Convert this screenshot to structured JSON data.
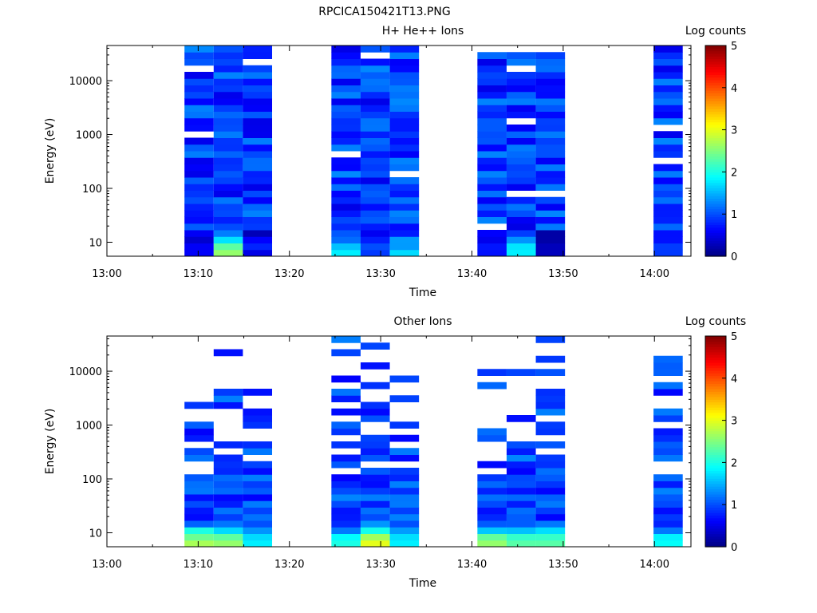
{
  "page_title": "RPCICA150421T13.PNG",
  "chart_data": [
    {
      "type": "heatmap",
      "title": "H+ He++ Ions",
      "xlabel": "Time",
      "ylabel": "Energy (eV)",
      "x_ticks": [
        "13:00",
        "13:10",
        "13:20",
        "13:30",
        "13:40",
        "13:50",
        "14:00"
      ],
      "y_ticks": [
        "10",
        "100",
        "1000",
        "10000"
      ],
      "y_scale": "log",
      "ylim": [
        5.5,
        45000
      ],
      "colorbar": {
        "label": "Log counts",
        "ticks": [
          "0",
          "1",
          "2",
          "3",
          "4",
          "5"
        ],
        "range": [
          0,
          5
        ],
        "colormap": "jet"
      },
      "time_blocks": [
        {
          "start": "13:08.5",
          "end": "13:11.7"
        },
        {
          "start": "13:11.7",
          "end": "13:14.9"
        },
        {
          "start": "13:14.9",
          "end": "13:18.1"
        },
        {
          "start": "13:24.6",
          "end": "13:27.8"
        },
        {
          "start": "13:27.8",
          "end": "13:31.0"
        },
        {
          "start": "13:31.0",
          "end": "13:34.2"
        },
        {
          "start": "13:40.6",
          "end": "13:43.8"
        },
        {
          "start": "13:43.8",
          "end": "13:47.0"
        },
        {
          "start": "13:47.0",
          "end": "13:50.2"
        },
        {
          "start": "13:59.9",
          "end": "14:03.1"
        }
      ],
      "low_energy_log_counts": [
        0.6,
        2.6,
        0.5,
        1.8,
        0.9,
        1.7,
        0.7,
        1.8,
        0.3,
        0.9
      ]
    },
    {
      "type": "heatmap",
      "title": "Other Ions",
      "xlabel": "Time",
      "ylabel": "Energy (eV)",
      "x_ticks": [
        "13:00",
        "13:10",
        "13:20",
        "13:30",
        "13:40",
        "13:50",
        "14:00"
      ],
      "y_ticks": [
        "10",
        "100",
        "1000",
        "10000"
      ],
      "y_scale": "log",
      "ylim": [
        5.5,
        45000
      ],
      "colorbar": {
        "label": "Log counts",
        "ticks": [
          "0",
          "1",
          "2",
          "3",
          "4",
          "5"
        ],
        "range": [
          0,
          5
        ],
        "colormap": "jet"
      },
      "time_blocks": [
        {
          "start": "13:08.5",
          "end": "13:11.7"
        },
        {
          "start": "13:11.7",
          "end": "13:14.9"
        },
        {
          "start": "13:14.9",
          "end": "13:18.1"
        },
        {
          "start": "13:24.6",
          "end": "13:27.8"
        },
        {
          "start": "13:27.8",
          "end": "13:31.0"
        },
        {
          "start": "13:31.0",
          "end": "13:34.2"
        },
        {
          "start": "13:40.6",
          "end": "13:43.8"
        },
        {
          "start": "13:43.8",
          "end": "13:47.0"
        },
        {
          "start": "13:47.0",
          "end": "13:50.2"
        },
        {
          "start": "13:59.9",
          "end": "14:03.1"
        }
      ],
      "low_energy_log_counts": [
        2.7,
        2.6,
        1.8,
        2.0,
        3.0,
        1.8,
        2.6,
        2.3,
        2.3,
        1.9
      ]
    }
  ]
}
